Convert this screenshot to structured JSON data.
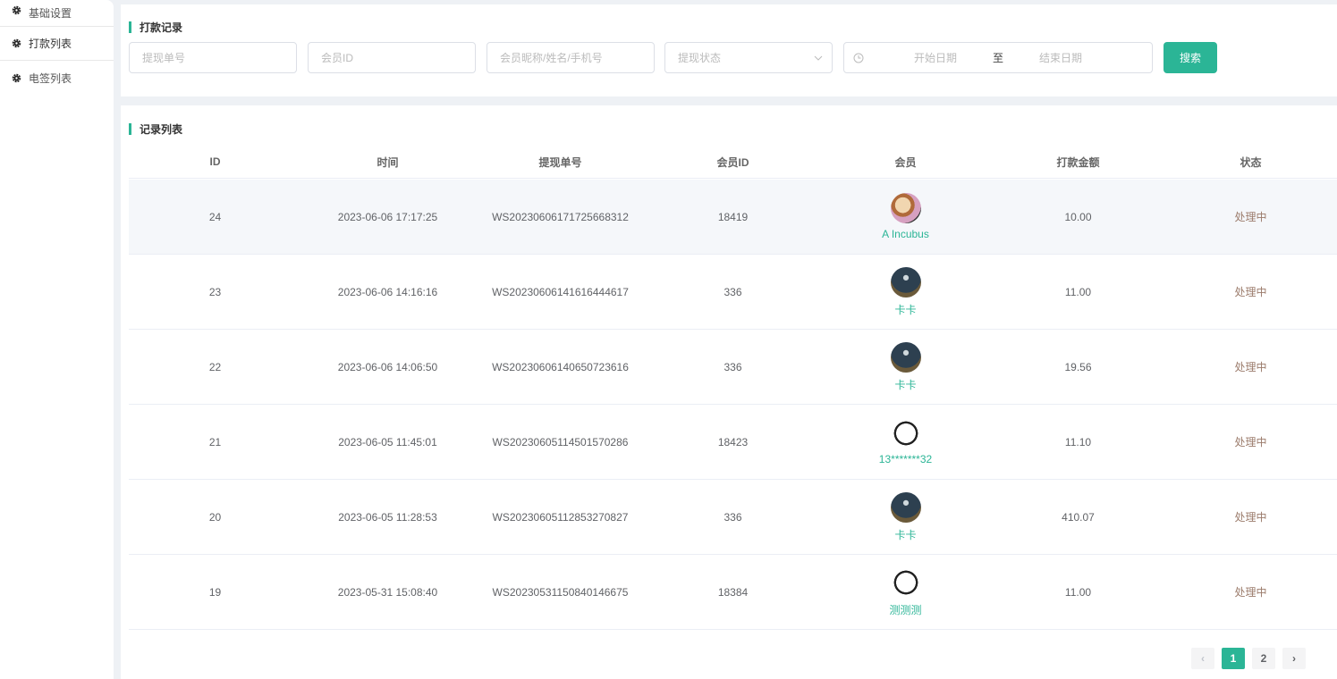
{
  "sidebar": {
    "items": [
      {
        "label": "基础设置",
        "icon": "gear-icon"
      },
      {
        "label": "打款列表",
        "icon": "gear-icon",
        "active": true
      },
      {
        "label": "电签列表",
        "icon": "gear-icon"
      }
    ]
  },
  "filter": {
    "title": "打款记录",
    "order_no_placeholder": "提现单号",
    "member_id_placeholder": "会员ID",
    "member_placeholder": "会员昵称/姓名/手机号",
    "status_placeholder": "提现状态",
    "start_date_placeholder": "开始日期",
    "range_sep": "至",
    "end_date_placeholder": "结束日期",
    "search_label": "搜索"
  },
  "table": {
    "title": "记录列表",
    "columns": [
      "ID",
      "时间",
      "提现单号",
      "会员ID",
      "会员",
      "打款金额",
      "状态"
    ],
    "rows": [
      {
        "id": "24",
        "time": "2023-06-06 17:17:25",
        "order": "WS20230606171725668312",
        "member_id": "18419",
        "member": "A Incubus",
        "avatar": "dog",
        "amount": "10.00",
        "status": "处理中"
      },
      {
        "id": "23",
        "time": "2023-06-06 14:16:16",
        "order": "WS20230606141616444617",
        "member_id": "336",
        "member": "卡卡",
        "avatar": "night",
        "amount": "11.00",
        "status": "处理中"
      },
      {
        "id": "22",
        "time": "2023-06-06 14:06:50",
        "order": "WS20230606140650723616",
        "member_id": "336",
        "member": "卡卡",
        "avatar": "night",
        "amount": "19.56",
        "status": "处理中"
      },
      {
        "id": "21",
        "time": "2023-06-05 11:45:01",
        "order": "WS20230605114501570286",
        "member_id": "18423",
        "member": "13*******32",
        "avatar": "panda",
        "amount": "11.10",
        "status": "处理中"
      },
      {
        "id": "20",
        "time": "2023-06-05 11:28:53",
        "order": "WS20230605112853270827",
        "member_id": "336",
        "member": "卡卡",
        "avatar": "night",
        "amount": "410.07",
        "status": "处理中"
      },
      {
        "id": "19",
        "time": "2023-05-31 15:08:40",
        "order": "WS20230531150840146675",
        "member_id": "18384",
        "member": "测测测",
        "avatar": "panda",
        "amount": "11.00",
        "status": "处理中"
      }
    ]
  },
  "pagination": {
    "pages": [
      "1",
      "2"
    ],
    "current": "1",
    "prev": "‹",
    "next": "›"
  },
  "colors": {
    "accent": "#2bb596",
    "status": "#9b7b6b"
  }
}
